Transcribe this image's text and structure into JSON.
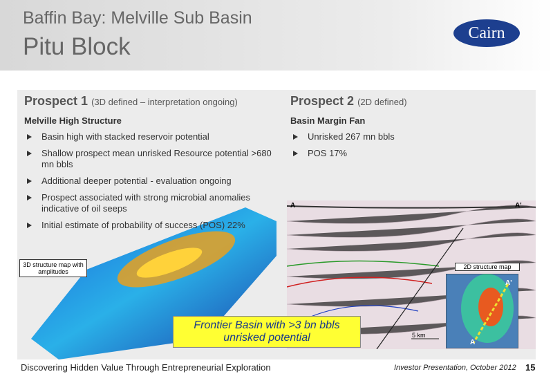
{
  "header": {
    "title": "Baffin Bay: Melville Sub Basin",
    "subtitle": "Pitu Block",
    "logo": "Cairn"
  },
  "prospects": [
    {
      "name": "Prospect 1",
      "status": "(3D defined – interpretation ongoing)",
      "heading": "Melville High Structure",
      "bullets": [
        "Basin high with stacked reservoir potential",
        "Shallow prospect mean unrisked Resource potential >680 mn bbls",
        "Additional deeper potential - evaluation ongoing",
        "Prospect associated with strong microbial anomalies indicative of oil seeps",
        "Initial estimate of probability of success  (POS) 22%"
      ]
    },
    {
      "name": "Prospect 2",
      "status": "(2D defined)",
      "heading": "Basin Margin Fan",
      "bullets": [
        "Unrisked 267 mn bbls",
        "POS 17%"
      ]
    }
  ],
  "figures": {
    "map_label": "3D structure map with amplitudes",
    "seismic_left": "A",
    "seismic_right": "A'",
    "inset_label": "2D structure map",
    "inset_top": "A'",
    "inset_bottom": "A",
    "scale": "5 km"
  },
  "callout": "Frontier Basin with >3 bn bbls unrisked potential",
  "footer": {
    "tagline": "Discovering Hidden Value Through Entrepreneurial Exploration",
    "event": "Investor Presentation, October 2012",
    "page": "15"
  }
}
